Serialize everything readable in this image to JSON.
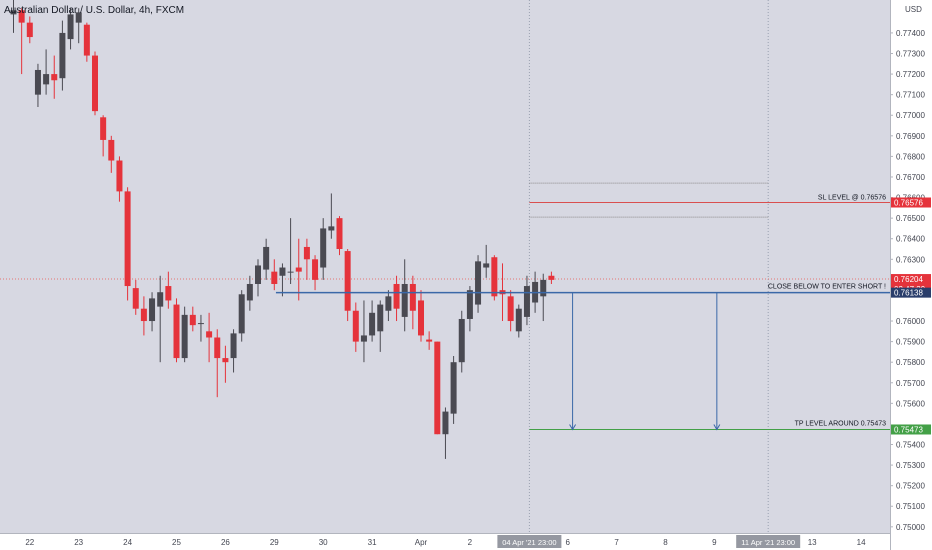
{
  "header": {
    "symbol_title": "Australian Dollar / U.S. Dollar, 4h, FXCM",
    "currency": "USD"
  },
  "colors": {
    "background": "#d7d8e2",
    "up": "#4a4a52",
    "down": "#e5333b",
    "sl_line": "#d94f4f",
    "entry_line": "#3a68a8",
    "tp_line": "#43a047",
    "dotted_line": "#8a8a8a",
    "axis_text": "#434651",
    "last_price_badge": "#e5333b",
    "entry_badge": "#2a3e6b",
    "tp_badge": "#43a047",
    "time_badge": "#9598a1"
  },
  "axis": {
    "price_ticks": [
      "0.77400",
      "0.77300",
      "0.77200",
      "0.77100",
      "0.77000",
      "0.76900",
      "0.76800",
      "0.76700",
      "0.76600",
      "0.76500",
      "0.76400",
      "0.76300",
      "0.76000",
      "0.75900",
      "0.75800",
      "0.75700",
      "0.75600",
      "0.75400",
      "0.75300",
      "0.75200",
      "0.75100",
      "0.75000"
    ],
    "time_ticks": [
      {
        "label": "22",
        "slot": 2
      },
      {
        "label": "23",
        "slot": 8
      },
      {
        "label": "24",
        "slot": 14
      },
      {
        "label": "25",
        "slot": 20
      },
      {
        "label": "26",
        "slot": 26
      },
      {
        "label": "29",
        "slot": 32
      },
      {
        "label": "30",
        "slot": 38
      },
      {
        "label": "31",
        "slot": 44
      },
      {
        "label": "Apr",
        "slot": 50
      },
      {
        "label": "2",
        "slot": 56
      },
      {
        "label": "6",
        "slot": 68
      },
      {
        "label": "7",
        "slot": 74
      },
      {
        "label": "8",
        "slot": 80
      },
      {
        "label": "9",
        "slot": 86
      },
      {
        "label": "13",
        "slot": 98
      },
      {
        "label": "14",
        "slot": 104
      }
    ]
  },
  "price_badges": {
    "sl": "0.76576",
    "last": "0.76204",
    "countdown": "03:47:39",
    "entry": "0.76138",
    "tp": "0.75473"
  },
  "time_badges": {
    "current": "04 Apr '21  23:00",
    "end": "11 Apr '21  23:00"
  },
  "annotations": {
    "sl_label": "SL LEVEL @ 0.76576",
    "entry_label": "CLOSE BELOW TO ENTER SHORT !",
    "tp_label": "TP LEVEL AROUND 0.75473"
  },
  "chart_data": {
    "type": "candlestick",
    "title": "Australian Dollar / U.S. Dollar, 4h, FXCM",
    "ylabel": "USD",
    "ylim": [
      0.7497,
      0.7756
    ],
    "levels": {
      "stop_loss": 0.76576,
      "upper_dotted": 0.7667,
      "lower_dotted": 0.76505,
      "entry": 0.76138,
      "take_profit": 0.75473,
      "last_price": 0.76204
    },
    "candles": [
      {
        "o": 0.7749,
        "h": 0.7756,
        "l": 0.774,
        "c": 0.7751
      },
      {
        "o": 0.7751,
        "h": 0.7752,
        "l": 0.772,
        "c": 0.7745
      },
      {
        "o": 0.7745,
        "h": 0.7748,
        "l": 0.7735,
        "c": 0.7738
      },
      {
        "o": 0.771,
        "h": 0.7725,
        "l": 0.7704,
        "c": 0.7722
      },
      {
        "o": 0.7715,
        "h": 0.7732,
        "l": 0.771,
        "c": 0.772
      },
      {
        "o": 0.772,
        "h": 0.7729,
        "l": 0.7708,
        "c": 0.7717
      },
      {
        "o": 0.7718,
        "h": 0.7746,
        "l": 0.7712,
        "c": 0.774
      },
      {
        "o": 0.7737,
        "h": 0.7752,
        "l": 0.7732,
        "c": 0.7749
      },
      {
        "o": 0.7745,
        "h": 0.7752,
        "l": 0.7735,
        "c": 0.775
      },
      {
        "o": 0.7744,
        "h": 0.7745,
        "l": 0.7726,
        "c": 0.7729
      },
      {
        "o": 0.7729,
        "h": 0.7731,
        "l": 0.77,
        "c": 0.7702
      },
      {
        "o": 0.7699,
        "h": 0.77,
        "l": 0.768,
        "c": 0.7688
      },
      {
        "o": 0.7688,
        "h": 0.769,
        "l": 0.7672,
        "c": 0.7678
      },
      {
        "o": 0.7678,
        "h": 0.768,
        "l": 0.7658,
        "c": 0.7663
      },
      {
        "o": 0.7663,
        "h": 0.7665,
        "l": 0.761,
        "c": 0.7617
      },
      {
        "o": 0.7616,
        "h": 0.762,
        "l": 0.7603,
        "c": 0.7606
      },
      {
        "o": 0.7606,
        "h": 0.7612,
        "l": 0.7593,
        "c": 0.76
      },
      {
        "o": 0.76,
        "h": 0.7614,
        "l": 0.7595,
        "c": 0.7611
      },
      {
        "o": 0.7607,
        "h": 0.7622,
        "l": 0.758,
        "c": 0.7614
      },
      {
        "o": 0.7617,
        "h": 0.7624,
        "l": 0.7606,
        "c": 0.761
      },
      {
        "o": 0.7608,
        "h": 0.7611,
        "l": 0.758,
        "c": 0.7582
      },
      {
        "o": 0.7582,
        "h": 0.7607,
        "l": 0.758,
        "c": 0.7603
      },
      {
        "o": 0.7603,
        "h": 0.7607,
        "l": 0.7595,
        "c": 0.7598
      },
      {
        "o": 0.7599,
        "h": 0.7603,
        "l": 0.759,
        "c": 0.7599
      },
      {
        "o": 0.7595,
        "h": 0.7604,
        "l": 0.758,
        "c": 0.7592
      },
      {
        "o": 0.7592,
        "h": 0.7596,
        "l": 0.7563,
        "c": 0.7582
      },
      {
        "o": 0.7582,
        "h": 0.7588,
        "l": 0.757,
        "c": 0.758
      },
      {
        "o": 0.7582,
        "h": 0.7596,
        "l": 0.7575,
        "c": 0.7594
      },
      {
        "o": 0.7594,
        "h": 0.7615,
        "l": 0.759,
        "c": 0.7613
      },
      {
        "o": 0.761,
        "h": 0.7622,
        "l": 0.7605,
        "c": 0.7618
      },
      {
        "o": 0.7618,
        "h": 0.763,
        "l": 0.7612,
        "c": 0.7627
      },
      {
        "o": 0.7625,
        "h": 0.764,
        "l": 0.762,
        "c": 0.7636
      },
      {
        "o": 0.7624,
        "h": 0.763,
        "l": 0.7615,
        "c": 0.7618
      },
      {
        "o": 0.7622,
        "h": 0.7628,
        "l": 0.7612,
        "c": 0.7626
      },
      {
        "o": 0.7624,
        "h": 0.765,
        "l": 0.7618,
        "c": 0.7624
      },
      {
        "o": 0.7626,
        "h": 0.764,
        "l": 0.761,
        "c": 0.7624
      },
      {
        "o": 0.7636,
        "h": 0.764,
        "l": 0.762,
        "c": 0.763
      },
      {
        "o": 0.763,
        "h": 0.7632,
        "l": 0.7615,
        "c": 0.762
      },
      {
        "o": 0.7626,
        "h": 0.765,
        "l": 0.762,
        "c": 0.7645
      },
      {
        "o": 0.7644,
        "h": 0.7662,
        "l": 0.764,
        "c": 0.7646
      },
      {
        "o": 0.765,
        "h": 0.7651,
        "l": 0.7632,
        "c": 0.7635
      },
      {
        "o": 0.7634,
        "h": 0.7635,
        "l": 0.76,
        "c": 0.7605
      },
      {
        "o": 0.7605,
        "h": 0.7609,
        "l": 0.7585,
        "c": 0.759
      },
      {
        "o": 0.759,
        "h": 0.761,
        "l": 0.758,
        "c": 0.7593
      },
      {
        "o": 0.7593,
        "h": 0.761,
        "l": 0.759,
        "c": 0.7604
      },
      {
        "o": 0.7595,
        "h": 0.761,
        "l": 0.7585,
        "c": 0.7608
      },
      {
        "o": 0.7605,
        "h": 0.7615,
        "l": 0.76,
        "c": 0.7612
      },
      {
        "o": 0.7618,
        "h": 0.7622,
        "l": 0.76,
        "c": 0.7606
      },
      {
        "o": 0.7602,
        "h": 0.763,
        "l": 0.7595,
        "c": 0.7618
      },
      {
        "o": 0.7618,
        "h": 0.7622,
        "l": 0.7596,
        "c": 0.7605
      },
      {
        "o": 0.761,
        "h": 0.7615,
        "l": 0.759,
        "c": 0.7593
      },
      {
        "o": 0.7591,
        "h": 0.7595,
        "l": 0.7586,
        "c": 0.759
      },
      {
        "o": 0.759,
        "h": 0.759,
        "l": 0.7545,
        "c": 0.7545
      },
      {
        "o": 0.7545,
        "h": 0.7558,
        "l": 0.7533,
        "c": 0.7556
      },
      {
        "o": 0.7555,
        "h": 0.7583,
        "l": 0.755,
        "c": 0.758
      },
      {
        "o": 0.758,
        "h": 0.7605,
        "l": 0.7575,
        "c": 0.7601
      },
      {
        "o": 0.7601,
        "h": 0.7617,
        "l": 0.7595,
        "c": 0.7615
      },
      {
        "o": 0.7608,
        "h": 0.7632,
        "l": 0.7604,
        "c": 0.7629
      },
      {
        "o": 0.7626,
        "h": 0.7637,
        "l": 0.7621,
        "c": 0.7628
      },
      {
        "o": 0.7631,
        "h": 0.7632,
        "l": 0.761,
        "c": 0.7612
      },
      {
        "o": 0.7615,
        "h": 0.7628,
        "l": 0.76,
        "c": 0.7613
      },
      {
        "o": 0.7612,
        "h": 0.7615,
        "l": 0.7595,
        "c": 0.76
      },
      {
        "o": 0.7595,
        "h": 0.7608,
        "l": 0.7592,
        "c": 0.7606
      },
      {
        "o": 0.7602,
        "h": 0.7622,
        "l": 0.7598,
        "c": 0.7617
      },
      {
        "o": 0.7609,
        "h": 0.7624,
        "l": 0.7604,
        "c": 0.7619
      },
      {
        "o": 0.7612,
        "h": 0.7623,
        "l": 0.76,
        "c": 0.762
      },
      {
        "o": 0.7622,
        "h": 0.7624,
        "l": 0.7618,
        "c": 0.762
      }
    ]
  }
}
